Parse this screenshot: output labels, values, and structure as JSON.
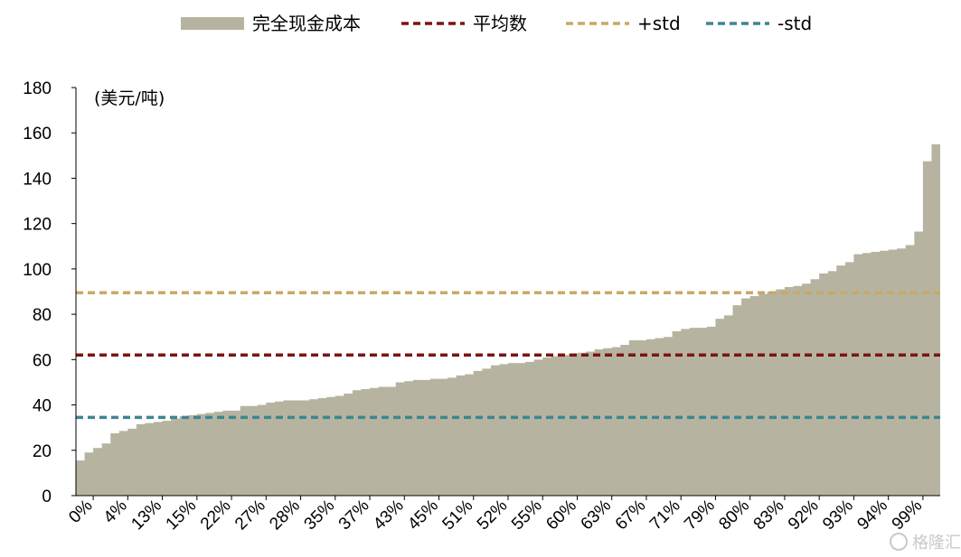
{
  "chart_data": {
    "type": "area",
    "y_unit": "(美元/吨)",
    "ylim": [
      0,
      180
    ],
    "y_ticks": [
      0,
      20,
      40,
      60,
      80,
      100,
      120,
      140,
      160,
      180
    ],
    "grid": false,
    "legend_position": "top",
    "x_tick_labels": [
      "0%",
      "4%",
      "13%",
      "15%",
      "22%",
      "27%",
      "28%",
      "35%",
      "37%",
      "43%",
      "45%",
      "51%",
      "52%",
      "55%",
      "60%",
      "63%",
      "67%",
      "71%",
      "79%",
      "80%",
      "83%",
      "92%",
      "93%",
      "94%",
      "99%"
    ],
    "series": [
      {
        "name": "完全现金成本",
        "kind": "area",
        "color": "#b6b4a0",
        "values": [
          15.5,
          19,
          21,
          23,
          27.5,
          28.5,
          29.5,
          31.5,
          32,
          32.5,
          33,
          34,
          35,
          35.5,
          36,
          36.5,
          37,
          37.5,
          37.5,
          39.5,
          39.5,
          40,
          41,
          41.5,
          42,
          42,
          42,
          42.5,
          43,
          43.5,
          44,
          45,
          46.5,
          47,
          47.5,
          48,
          48,
          50,
          50.5,
          51,
          51,
          51.5,
          51.5,
          52,
          53,
          53.5,
          55,
          56,
          57.5,
          58,
          58.5,
          58.5,
          59,
          60,
          61,
          61.5,
          62,
          62.5,
          63,
          63.5,
          64.5,
          65,
          65.5,
          66.5,
          68.5,
          68.5,
          69,
          69.5,
          70,
          72.5,
          73.5,
          74,
          74,
          74.5,
          78,
          79.5,
          84,
          87,
          88,
          89,
          90,
          91,
          92,
          92.5,
          93.5,
          95.5,
          98,
          99,
          101.5,
          103,
          106.5,
          107,
          107.5,
          108,
          108.5,
          109,
          110.5,
          116.5,
          147.5,
          155
        ]
      },
      {
        "name": "平均数",
        "kind": "hline",
        "color": "#7a1414",
        "value": 62
      },
      {
        "name": "+std",
        "kind": "hline",
        "color": "#c8a965",
        "value": 89.5
      },
      {
        "name": "-std",
        "kind": "hline",
        "color": "#3e8592",
        "value": 34.5
      }
    ]
  },
  "watermark": {
    "text": "格隆汇"
  }
}
